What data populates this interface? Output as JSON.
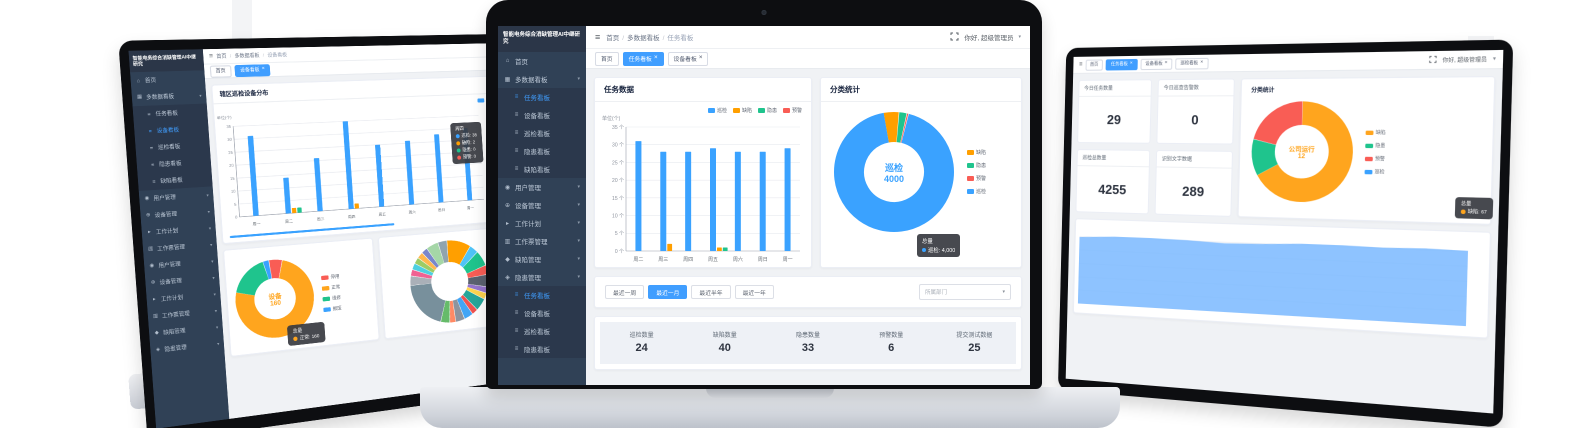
{
  "brand_logo": "智能电务综合消缺管理AI中继研究",
  "center": {
    "logo": "智能电务综合消缺管理AI中继研究",
    "breadcrumb": [
      "首页",
      "多数据看板",
      "任务看板"
    ],
    "greeting": "你好, 超级管理员",
    "tags": [
      {
        "label": "首页"
      },
      {
        "label": "任务看板",
        "active": true,
        "closable": true
      },
      {
        "label": "设备看板",
        "closable": true
      }
    ],
    "sidebar": [
      {
        "icon": "home",
        "label": "首页"
      },
      {
        "icon": "board",
        "label": "多数据看板",
        "group": true,
        "open": true
      },
      {
        "icon": "list",
        "label": "任务看板",
        "sub": true,
        "active": true
      },
      {
        "icon": "list",
        "label": "设备看板",
        "sub": true
      },
      {
        "icon": "list",
        "label": "巡检看板",
        "sub": true
      },
      {
        "icon": "list",
        "label": "隐患看板",
        "sub": true
      },
      {
        "icon": "list",
        "label": "缺陷看板",
        "sub": true
      },
      {
        "icon": "user",
        "label": "用户管理",
        "group": true
      },
      {
        "icon": "device",
        "label": "设备管理",
        "group": true
      },
      {
        "icon": "plan",
        "label": "工作计划",
        "group": true
      },
      {
        "icon": "ticket",
        "label": "工作票管理",
        "group": true
      },
      {
        "icon": "defect",
        "label": "缺陷管理",
        "group": true
      },
      {
        "icon": "danger",
        "label": "隐患管理",
        "group": true
      },
      {
        "icon": "list",
        "label": "任务看板",
        "sub": true,
        "active": true
      },
      {
        "icon": "list",
        "label": "设备看板",
        "sub": true
      },
      {
        "icon": "list",
        "label": "巡检看板",
        "sub": true
      },
      {
        "icon": "list",
        "label": "隐患看板",
        "sub": true
      }
    ],
    "filters": {
      "buttons": [
        "最近一周",
        "最近一月",
        "最近半年",
        "最近一年"
      ],
      "active_index": 1,
      "select_placeholder": "所属部门"
    },
    "stats": [
      {
        "label": "巡检数量",
        "value": "24"
      },
      {
        "label": "缺陷数量",
        "value": "40"
      },
      {
        "label": "隐患数量",
        "value": "33"
      },
      {
        "label": "预警数量",
        "value": "6"
      },
      {
        "label": "提交测试数据",
        "value": "25"
      }
    ]
  },
  "left": {
    "logo": "智能电务综合消缺管理AI中继研究",
    "breadcrumb": [
      "首页",
      "多数据看板",
      "设备看板"
    ],
    "tags": [
      {
        "label": "首页"
      },
      {
        "label": "设备看板",
        "active": true,
        "closable": true
      }
    ],
    "sidebar": [
      {
        "icon": "home",
        "label": "首页"
      },
      {
        "icon": "board",
        "label": "多数据看板",
        "group": true,
        "open": true
      },
      {
        "icon": "list",
        "label": "任务看板",
        "sub": true
      },
      {
        "icon": "list",
        "label": "设备看板",
        "sub": true,
        "active": true
      },
      {
        "icon": "list",
        "label": "巡检看板",
        "sub": true
      },
      {
        "icon": "list",
        "label": "隐患看板",
        "sub": true
      },
      {
        "icon": "list",
        "label": "缺陷看板",
        "sub": true
      },
      {
        "icon": "user",
        "label": "用户管理",
        "group": true
      },
      {
        "icon": "device",
        "label": "设备管理",
        "group": true
      },
      {
        "icon": "plan",
        "label": "工作计划",
        "group": true
      },
      {
        "icon": "ticket",
        "label": "工作票管理",
        "group": true
      },
      {
        "icon": "user",
        "label": "用户管理",
        "group": true
      },
      {
        "icon": "device",
        "label": "设备管理",
        "group": true
      },
      {
        "icon": "plan",
        "label": "工作计划",
        "group": true
      },
      {
        "icon": "ticket",
        "label": "工作票管理",
        "group": true
      },
      {
        "icon": "defect",
        "label": "缺陷管理",
        "group": true
      },
      {
        "icon": "danger",
        "label": "隐患管理",
        "group": true
      }
    ]
  },
  "right": {
    "greeting": "你好, 超级管理员",
    "tags": [
      {
        "label": "首页"
      },
      {
        "label": "任务看板",
        "active": true,
        "closable": true
      },
      {
        "label": "设备看板",
        "closable": true
      },
      {
        "label": "巡检看板",
        "closable": true
      }
    ],
    "cards": [
      {
        "title": "今日任务数量",
        "value": "29"
      },
      {
        "title": "今日巡查告警数",
        "value": "0"
      },
      {
        "title": "巡检总数量",
        "value": "4255"
      },
      {
        "title": "识别文字数据",
        "value": "289"
      }
    ]
  },
  "chart_data": [
    {
      "id": "center-task-bar",
      "type": "bar",
      "title": "任务数据",
      "ylabel": "单位(个)",
      "ylim": [
        0,
        35
      ],
      "ytick_step": 5,
      "ytick_suffix": " 个",
      "grid": true,
      "legend_position": "top-right",
      "categories": [
        "周二",
        "周三",
        "周四",
        "周五",
        "周六",
        "周日",
        "周一"
      ],
      "series": [
        {
          "name": "巡检",
          "color": "#3aa2ff",
          "values": [
            31,
            28,
            28,
            29,
            28,
            28,
            29
          ]
        },
        {
          "name": "缺陷",
          "color": "#ff9f00",
          "values": [
            0,
            2,
            0,
            1,
            0,
            0,
            0
          ]
        },
        {
          "name": "隐患",
          "color": "#1fc48d",
          "values": [
            0,
            0,
            0,
            1,
            0,
            0,
            0
          ]
        },
        {
          "name": "预警",
          "color": "#f95d55",
          "values": [
            0,
            0,
            0,
            0,
            0,
            0,
            0
          ]
        }
      ]
    },
    {
      "id": "center-category-donut",
      "type": "donut",
      "title": "分类统计",
      "start_angle": -100,
      "legend_position": "right",
      "slices": [
        {
          "name": "缺陷",
          "color": "#ff9f00",
          "value": 180
        },
        {
          "name": "隐患",
          "color": "#1fc48d",
          "value": 90
        },
        {
          "name": "预警",
          "color": "#f95d55",
          "value": 20
        },
        {
          "name": "巡检",
          "color": "#3aa2ff",
          "value": 4000
        }
      ],
      "center": {
        "label": "巡检",
        "value": "4000",
        "color": "#3aa2ff"
      },
      "tooltip": {
        "title": "总量",
        "entry": "巡检: 4,000",
        "color": "#3aa2ff"
      }
    },
    {
      "id": "left-area-bar",
      "type": "bar",
      "title": "辖区巡检设备分布",
      "ylabel": "单位(个)",
      "ylim": [
        0,
        35
      ],
      "ytick_step": 5,
      "ytick_suffix": "",
      "grid": true,
      "legend_position": "top-right",
      "categories": [
        "周一",
        "周二",
        "周三",
        "周四",
        "周五",
        "周六",
        "周日",
        "周一"
      ],
      "series": [
        {
          "name": "设备数",
          "color": "#3aa2ff",
          "values": [
            31,
            14,
            21,
            35,
            25,
            26,
            28,
            30
          ]
        },
        {
          "name": "",
          "color": "#ff9f00",
          "values": [
            0,
            2,
            0,
            2,
            0,
            0,
            0,
            0
          ]
        },
        {
          "name": "",
          "color": "#1fc48d",
          "values": [
            0,
            2,
            0,
            0,
            0,
            0,
            0,
            0
          ]
        }
      ],
      "tooltip": {
        "title": "周四",
        "entries": [
          {
            "text": "巡检: 35",
            "color": "#3aa2ff"
          },
          {
            "text": "缺陷: 2",
            "color": "#ff9f00"
          },
          {
            "text": "隐患: 0",
            "color": "#1fc48d"
          },
          {
            "text": "预警: 0",
            "color": "#f95d55"
          }
        ]
      }
    },
    {
      "id": "left-device-donut",
      "type": "donut",
      "start_angle": -95,
      "legend_position": "right",
      "slices": [
        {
          "name": "停用",
          "color": "#f95d55",
          "value": 5.5
        },
        {
          "name": "正常",
          "color": "#ffa51e",
          "value": 75
        },
        {
          "name": "维修",
          "color": "#1fc48d",
          "value": 17
        },
        {
          "name": "报废",
          "color": "#3aa2ff",
          "value": 2.5
        }
      ],
      "center": {
        "label": "设备",
        "value": "160",
        "color": "#ffa51e"
      },
      "tooltip": {
        "title": "总量",
        "entry": "正常: 160",
        "color": "#ffa51e"
      }
    },
    {
      "id": "left-multi-donut",
      "type": "donut",
      "start_angle": -90,
      "slices": [
        {
          "color": "#ff9f00",
          "value": 8
        },
        {
          "color": "#4fc3f7",
          "value": 3
        },
        {
          "color": "#1fc48d",
          "value": 5
        },
        {
          "color": "#f95d55",
          "value": 3
        },
        {
          "color": "#5b6270",
          "value": 4
        },
        {
          "color": "#9575cd",
          "value": 2
        },
        {
          "color": "#ffd54f",
          "value": 2
        },
        {
          "color": "#26a69a",
          "value": 4
        },
        {
          "color": "#ef5350",
          "value": 2
        },
        {
          "color": "#42a5f5",
          "value": 3
        },
        {
          "color": "#8d949e",
          "value": 3
        },
        {
          "color": "#ff8a65",
          "value": 2
        },
        {
          "color": "#66bb6a",
          "value": 3
        },
        {
          "color": "#78909c",
          "value": 16
        },
        {
          "color": "#aab0b8",
          "value": 3
        },
        {
          "color": "#f06292",
          "value": 2
        },
        {
          "color": "#4dd0e1",
          "value": 2
        },
        {
          "color": "#9ccc65",
          "value": 2
        },
        {
          "color": "#ffb74d",
          "value": 2
        },
        {
          "color": "#7986cb",
          "value": 2
        },
        {
          "color": "#a5d6a7",
          "value": 4
        },
        {
          "color": "#90a4ae",
          "value": 3
        }
      ]
    },
    {
      "id": "right-category-donut",
      "type": "donut",
      "title": "分类统计",
      "start_angle": -90,
      "legend_position": "right",
      "slices": [
        {
          "name": "缺陷",
          "color": "#ffa51e",
          "value": 67
        },
        {
          "name": "隐患",
          "color": "#1fc48d",
          "value": 12
        },
        {
          "name": "预警",
          "color": "#f95d55",
          "value": 21
        },
        {
          "name": "巡检",
          "color": "#3aa2ff",
          "value": 0.001
        }
      ],
      "center": {
        "label": "公司运行",
        "value": "12",
        "color": "#ffa51e"
      },
      "tooltip": {
        "title": "总量",
        "entry": "缺陷: 67",
        "color": "#ffa51e"
      }
    },
    {
      "id": "right-trend-area",
      "type": "area",
      "color": "#7ab8ff",
      "ylim": [
        0,
        100
      ],
      "values": [
        83,
        85,
        85,
        84,
        82,
        83,
        85,
        85,
        84,
        85,
        84
      ]
    }
  ]
}
